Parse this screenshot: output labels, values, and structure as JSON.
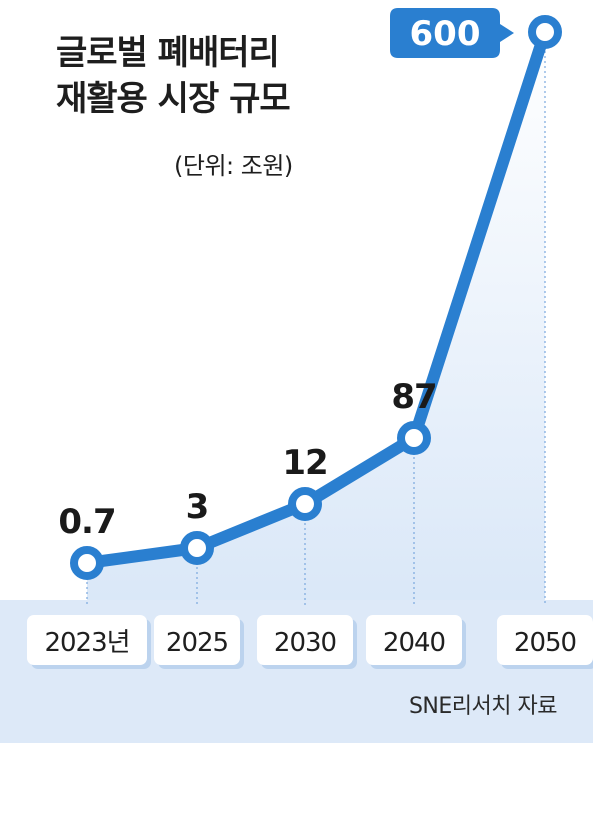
{
  "title_line1": "글로벌 폐배터리",
  "title_line2": "재활용 시장 규모",
  "unit": "(단위: 조원)",
  "source": "SNE리서치 자료",
  "chart_data": {
    "type": "line",
    "title": "글로벌 폐배터리 재활용 시장 규모",
    "unit": "(단위: 조원)",
    "categories": [
      "2023년",
      "2025",
      "2030",
      "2040",
      "2050"
    ],
    "values": [
      0.7,
      3,
      12,
      87,
      600
    ],
    "value_labels": [
      "0.7",
      "3",
      "12",
      "87",
      "600"
    ],
    "colors": {
      "line": "#2a7fd0",
      "band": "#dde9f8",
      "area": "#e6f0fb",
      "highlight": "#2a7fd0"
    }
  }
}
